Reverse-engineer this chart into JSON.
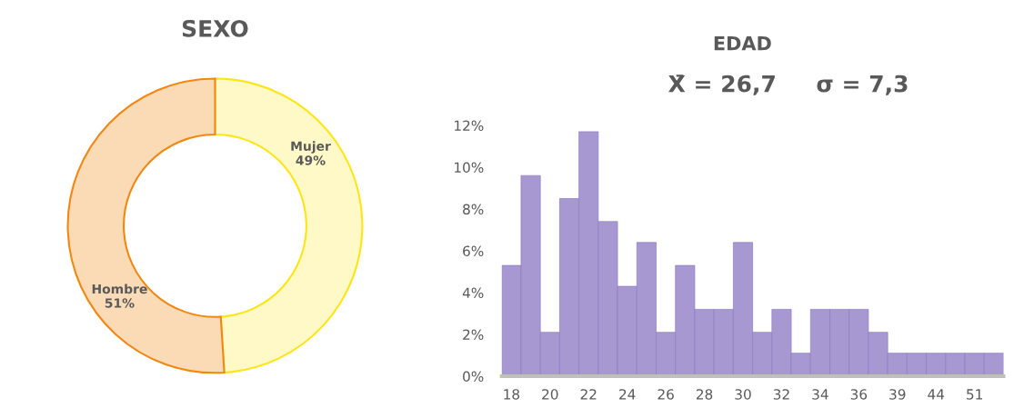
{
  "chart_data": [
    {
      "type": "donut",
      "title": "SEXO",
      "categories": [
        "Mujer",
        "Hombre"
      ],
      "values": [
        49,
        51
      ],
      "value_labels": [
        "49%",
        "51%"
      ],
      "colors": [
        "#fff9c8",
        "#fbdab6"
      ],
      "legend": false
    },
    {
      "type": "bar",
      "title": "EDAD",
      "subtitle": "X̄ = 26,7     σ = 7,3",
      "categories": [
        "18",
        null,
        "20",
        null,
        "22",
        null,
        "24",
        null,
        "26",
        null,
        "28",
        null,
        "30",
        null,
        "32",
        null,
        "34",
        null,
        "36",
        null,
        "39",
        null,
        "44",
        null,
        "51",
        null
      ],
      "values": [
        5.3,
        9.6,
        2.1,
        8.5,
        11.7,
        7.4,
        4.3,
        6.4,
        2.1,
        5.3,
        3.2,
        3.2,
        6.4,
        2.1,
        3.2,
        1.1,
        3.2,
        3.2,
        3.2,
        2.1,
        1.1,
        1.1,
        1.1,
        1.1,
        1.1,
        1.1
      ],
      "color": "#a898d2",
      "ylim": [
        0,
        12
      ],
      "yticks": [
        {
          "value": 0,
          "label": "0%"
        },
        {
          "value": 2,
          "label": "2%"
        },
        {
          "value": 4,
          "label": "4%"
        },
        {
          "value": 6,
          "label": "6%"
        },
        {
          "value": 8,
          "label": "8%"
        },
        {
          "value": 10,
          "label": "10%"
        },
        {
          "value": 12,
          "label": "12%"
        }
      ],
      "grid": false,
      "legend": false
    }
  ]
}
